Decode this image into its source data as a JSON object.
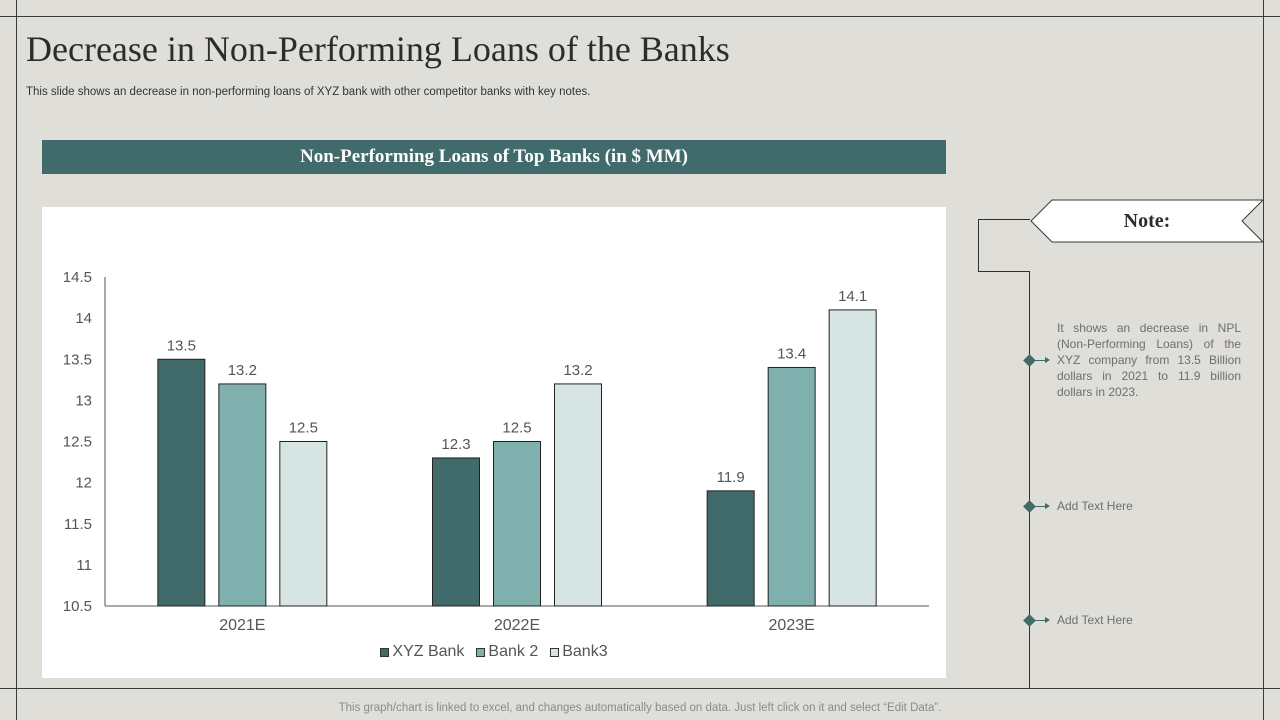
{
  "title": "Decrease in Non-Performing Loans of the Banks",
  "subtitle": "This slide shows an decrease in non-performing loans of XYZ  bank with other competitor banks with key notes.",
  "chart_banner": "Non-Performing  Loans of Top Banks (in $ MM)",
  "chart_data": {
    "type": "bar",
    "title": "Non-Performing  Loans of Top Banks (in $ MM)",
    "categories": [
      "2021E",
      "2022E",
      "2023E"
    ],
    "series": [
      {
        "name": "XYZ Bank",
        "values": [
          13.5,
          12.3,
          11.9
        ],
        "color": "#416b6a"
      },
      {
        "name": "Bank 2",
        "values": [
          13.2,
          12.5,
          13.4
        ],
        "color": "#7fb0ae"
      },
      {
        "name": "Bank3",
        "values": [
          12.5,
          13.2,
          14.1
        ],
        "color": "#d6e4e3"
      }
    ],
    "ylim": [
      10.5,
      14.5
    ],
    "yticks": [
      "10.5",
      "11",
      "11.5",
      "12",
      "12.5",
      "13",
      "13.5",
      "14",
      "14.5"
    ],
    "data_labels": true,
    "legend": "bottom",
    "grid": false
  },
  "notes": {
    "label": "Note:",
    "items": [
      {
        "text": "It shows an decrease in NPL (Non-Performing Loans) of the XYZ company from 13.5 Billion dollars in 2021 to 11.9 billion dollars in 2023."
      },
      {
        "text": "Add Text Here"
      },
      {
        "text": "Add Text Here"
      }
    ]
  },
  "footer": "This graph/chart is linked to excel,  and changes automatically based on data. Just left click on it and select “Edit Data”."
}
